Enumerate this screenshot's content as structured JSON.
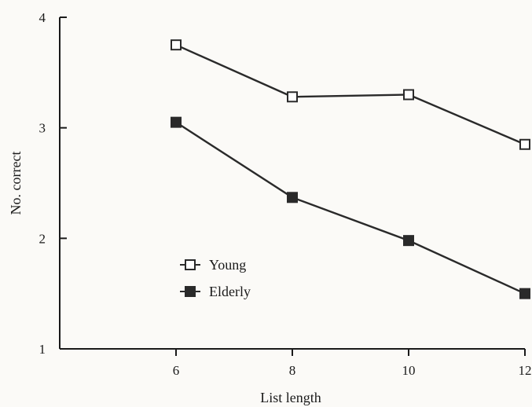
{
  "chart_data": {
    "type": "line",
    "title": "",
    "xlabel": "List length",
    "ylabel": "No. correct",
    "x": [
      6,
      8,
      10,
      12
    ],
    "xticks": [
      "6",
      "8",
      "10",
      "12"
    ],
    "yticks": [
      "1",
      "2",
      "3",
      "4"
    ],
    "xlim": [
      4,
      12
    ],
    "ylim": [
      1,
      4
    ],
    "grid": false,
    "legend_position": "center-left",
    "series": [
      {
        "name": "Young",
        "marker": "open-square",
        "values": [
          3.75,
          3.28,
          3.3,
          2.85
        ]
      },
      {
        "name": "Elderly",
        "marker": "filled-square",
        "values": [
          3.05,
          2.37,
          1.98,
          1.5
        ]
      }
    ]
  },
  "colors": {
    "line": "#2a2a2a",
    "axis": "#1a1a1a",
    "marker_fill_open": "#ffffff"
  }
}
